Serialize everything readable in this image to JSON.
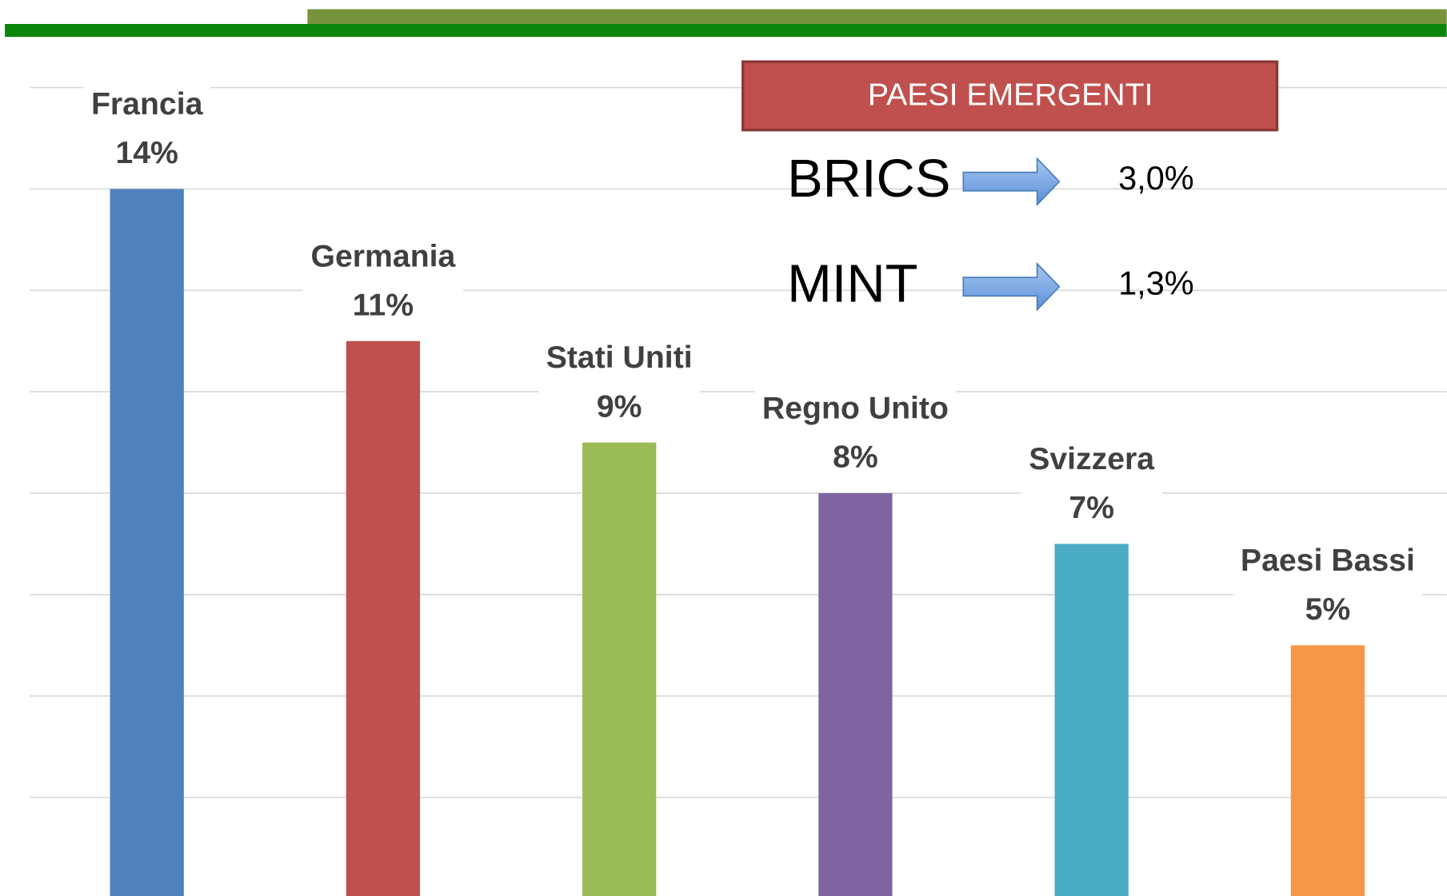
{
  "chart_data": {
    "type": "bar",
    "categories": [
      "Francia",
      "Germania",
      "Stati Uniti",
      "Regno Unito",
      "Svizzera",
      "Paesi Bassi"
    ],
    "values": [
      14,
      11,
      9,
      8,
      7,
      5
    ],
    "value_labels": [
      "14%",
      "11%",
      "9%",
      "8%",
      "7%",
      "5%"
    ],
    "colors": [
      "#4f81bd",
      "#c0504d",
      "#9bbb59",
      "#8064a2",
      "#4bacc6",
      "#f79646"
    ],
    "ylim": [
      0,
      16
    ],
    "yticks": [
      0,
      2,
      4,
      6,
      8,
      10,
      12,
      14,
      16
    ],
    "grid": true,
    "panel": {
      "title": "PAESI EMERGENTI",
      "rows": [
        {
          "name": "BRICS",
          "value_label": "3,0%"
        },
        {
          "name": "MINT",
          "value_label": "1,3%"
        }
      ]
    }
  }
}
